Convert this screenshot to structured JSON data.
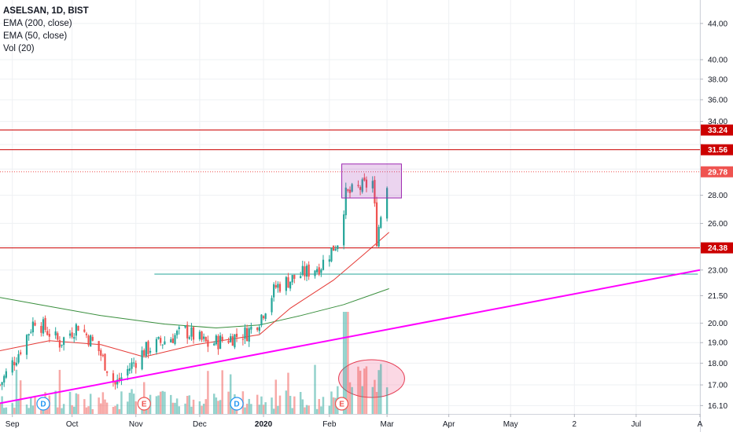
{
  "legend": {
    "symbol": "ASELSAN, 1D, BIST",
    "ema200": "EMA (200, close)",
    "ema50": "EMA (50, close)",
    "vol": "Vol (20)"
  },
  "chart_data": {
    "type": "candlestick",
    "y_axis": {
      "scale": "log",
      "range": [
        15.75,
        46.8
      ],
      "ticks": [
        16.1,
        17.0,
        18.0,
        19.0,
        20.0,
        21.5,
        23.0,
        24.5,
        26.0,
        28.0,
        30.0,
        32.0,
        34.0,
        36.0,
        38.0,
        40.0,
        44.0
      ],
      "tick_labels": [
        "16.10",
        "17.00",
        "18.00",
        "19.00",
        "20.00",
        "21.50",
        "23.00",
        "",
        "26.00",
        "28.00",
        "",
        "",
        "34.00",
        "36.00",
        "38.00",
        "40.00",
        "44.00"
      ]
    },
    "x_axis": {
      "range": [
        "2019-08-27",
        "2020-08-01"
      ],
      "ticks": [
        {
          "date": "2019-09-02",
          "label": "Sep",
          "bold": false
        },
        {
          "date": "2019-10-01",
          "label": "Oct",
          "bold": false
        },
        {
          "date": "2019-11-01",
          "label": "Nov",
          "bold": false
        },
        {
          "date": "2019-12-02",
          "label": "Dec",
          "bold": false
        },
        {
          "date": "2020-01-02",
          "label": "2020",
          "bold": true
        },
        {
          "date": "2020-02-03",
          "label": "Feb",
          "bold": false
        },
        {
          "date": "2020-03-02",
          "label": "Mar",
          "bold": false
        },
        {
          "date": "2020-04-01",
          "label": "Apr",
          "bold": false
        },
        {
          "date": "2020-05-01",
          "label": "May",
          "bold": false
        },
        {
          "date": "2020-06-01",
          "label": "2",
          "bold": false
        },
        {
          "date": "2020-07-01",
          "label": "Jul",
          "bold": false
        },
        {
          "date": "2020-08-01",
          "label": "A",
          "bold": false
        }
      ]
    },
    "grid": true,
    "colors": {
      "up": "#26a69a",
      "down": "#ef5350",
      "ema200": "#388e3c",
      "ema50": "#e53935",
      "level": "#cc0000",
      "trendline": "#ff00ff",
      "support": "#26a69a",
      "price_line": "#ef5350"
    },
    "price_segments": [
      {
        "from": "2019-08-27",
        "to": "2019-09-05",
        "start": 17.0,
        "end": 18.5
      },
      {
        "from": "2019-09-05",
        "to": "2019-09-13",
        "start": 18.5,
        "end": 20.2
      },
      {
        "from": "2019-09-13",
        "to": "2019-09-25",
        "start": 20.2,
        "end": 19.0
      },
      {
        "from": "2019-09-25",
        "to": "2019-10-04",
        "start": 19.0,
        "end": 19.9
      },
      {
        "from": "2019-10-04",
        "to": "2019-10-14",
        "start": 19.9,
        "end": 18.6
      },
      {
        "from": "2019-10-14",
        "to": "2019-10-22",
        "start": 18.6,
        "end": 17.0
      },
      {
        "from": "2019-10-22",
        "to": "2019-11-05",
        "start": 17.0,
        "end": 18.6
      },
      {
        "from": "2019-11-05",
        "to": "2019-11-25",
        "start": 18.6,
        "end": 19.6
      },
      {
        "from": "2019-11-25",
        "to": "2019-12-06",
        "start": 19.6,
        "end": 18.9
      },
      {
        "from": "2019-12-06",
        "to": "2019-12-25",
        "start": 18.9,
        "end": 19.5
      },
      {
        "from": "2019-12-25",
        "to": "2019-12-31",
        "start": 19.5,
        "end": 20.2
      },
      {
        "from": "2019-12-31",
        "to": "2020-01-08",
        "start": 20.2,
        "end": 22.0
      },
      {
        "from": "2020-01-08",
        "to": "2020-01-30",
        "start": 22.0,
        "end": 23.3
      },
      {
        "from": "2020-01-30",
        "to": "2020-02-07",
        "start": 23.3,
        "end": 24.8
      },
      {
        "from": "2020-02-07",
        "to": "2020-02-11",
        "start": 24.8,
        "end": 28.0
      },
      {
        "from": "2020-02-11",
        "to": "2020-02-24",
        "start": 28.0,
        "end": 29.0
      },
      {
        "from": "2020-02-24",
        "to": "2020-02-26",
        "start": 29.0,
        "end": 25.0
      },
      {
        "from": "2020-02-26",
        "to": "2020-03-03",
        "start": 25.0,
        "end": 29.8
      }
    ],
    "ema200": [
      [
        "2019-08-27",
        21.4
      ],
      [
        "2019-09-15",
        21.0
      ],
      [
        "2019-10-15",
        20.4
      ],
      [
        "2019-11-15",
        19.95
      ],
      [
        "2019-12-10",
        19.75
      ],
      [
        "2019-12-31",
        19.9
      ],
      [
        "2020-01-20",
        20.4
      ],
      [
        "2020-02-10",
        21.0
      ],
      [
        "2020-03-03",
        21.9
      ]
    ],
    "ema50": [
      [
        "2019-08-27",
        18.6
      ],
      [
        "2019-09-20",
        19.1
      ],
      [
        "2019-10-15",
        18.9
      ],
      [
        "2019-11-05",
        18.3
      ],
      [
        "2019-11-30",
        18.9
      ],
      [
        "2019-12-31",
        19.4
      ],
      [
        "2020-01-15",
        20.8
      ],
      [
        "2020-02-05",
        22.4
      ],
      [
        "2020-02-20",
        24.0
      ],
      [
        "2020-03-03",
        25.4
      ]
    ],
    "levels": [
      {
        "price": 33.24,
        "label": "33.24"
      },
      {
        "price": 31.56,
        "label": "31.56"
      },
      {
        "price": 24.38,
        "label": "24.38"
      }
    ],
    "last_price": {
      "price": 29.78,
      "label": "29.78"
    },
    "support_line": {
      "from": "2019-11-10",
      "to": "2020-07-31",
      "price": 22.75
    },
    "trendline": {
      "from": "2019-08-27",
      "from_price": 16.2,
      "to": "2020-08-01",
      "to_price": 23.0
    },
    "consolidation_box": {
      "from": "2020-02-09",
      "to": "2020-03-09",
      "low": 27.8,
      "high": 30.4
    },
    "volume_highlight": {
      "from": "2020-02-09",
      "to": "2020-03-09"
    },
    "events": [
      {
        "date": "2019-09-17",
        "label": "D",
        "kind": "dividend"
      },
      {
        "date": "2019-11-05",
        "label": "E",
        "kind": "earnings"
      },
      {
        "date": "2019-12-20",
        "label": "D",
        "kind": "dividend"
      },
      {
        "date": "2020-02-09",
        "label": "E",
        "kind": "earnings"
      }
    ]
  }
}
